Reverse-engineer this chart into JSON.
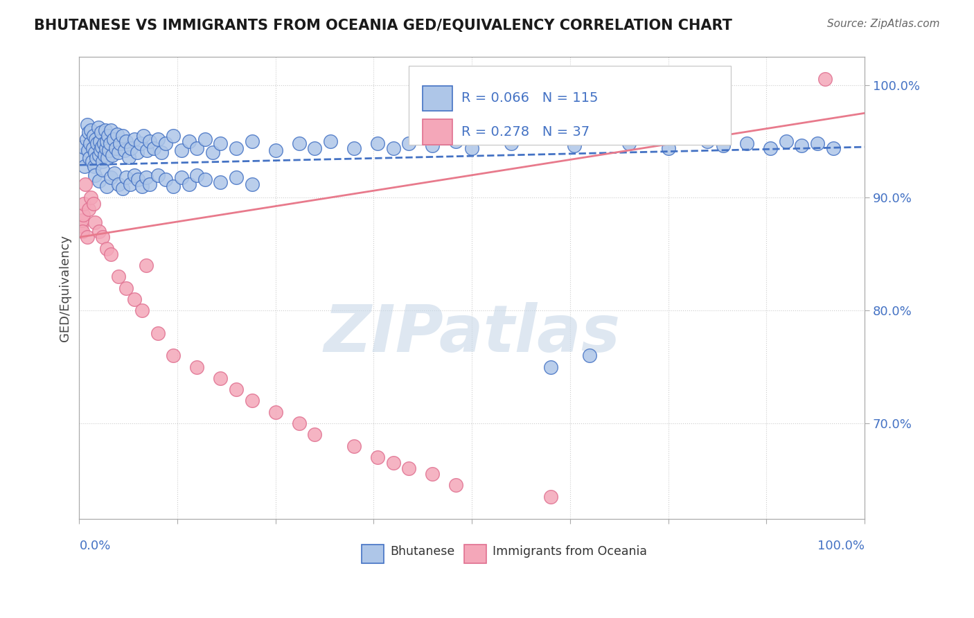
{
  "title": "BHUTANESE VS IMMIGRANTS FROM OCEANIA GED/EQUIVALENCY CORRELATION CHART",
  "source_text": "Source: ZipAtlas.com",
  "ylabel": "GED/Equivalency",
  "watermark": "ZIPatlas",
  "watermark_color": "#c8d8e8",
  "background_color": "#ffffff",
  "grid_color": "#cccccc",
  "blue_scatter_color": "#aec6e8",
  "pink_scatter_color": "#f4a7b9",
  "blue_line_color": "#4472c4",
  "pink_line_color": "#e87a8c",
  "blue_scatter_x": [
    0.3,
    0.5,
    0.7,
    0.9,
    1.0,
    1.1,
    1.2,
    1.3,
    1.4,
    1.5,
    1.6,
    1.7,
    1.8,
    1.9,
    2.0,
    2.1,
    2.2,
    2.3,
    2.4,
    2.5,
    2.6,
    2.7,
    2.8,
    2.9,
    3.0,
    3.1,
    3.2,
    3.3,
    3.4,
    3.5,
    3.6,
    3.7,
    3.8,
    3.9,
    4.0,
    4.2,
    4.4,
    4.6,
    4.8,
    5.0,
    5.2,
    5.5,
    5.8,
    6.0,
    6.3,
    6.6,
    7.0,
    7.4,
    7.8,
    8.2,
    8.6,
    9.0,
    9.5,
    10.0,
    10.5,
    11.0,
    12.0,
    13.0,
    14.0,
    15.0,
    16.0,
    17.0,
    18.0,
    20.0,
    22.0,
    25.0,
    28.0,
    30.0,
    32.0,
    35.0,
    38.0,
    40.0,
    42.0,
    45.0,
    48.0,
    50.0,
    55.0,
    60.0,
    63.0,
    65.0,
    70.0,
    75.0,
    80.0,
    82.0,
    85.0,
    88.0,
    90.0,
    92.0,
    94.0,
    96.0,
    2.0,
    2.5,
    3.0,
    3.5,
    4.0,
    4.5,
    5.0,
    5.5,
    6.0,
    6.5,
    7.0,
    7.5,
    8.0,
    8.5,
    9.0,
    10.0,
    11.0,
    12.0,
    13.0,
    14.0,
    15.0,
    16.0,
    18.0,
    20.0,
    22.0
  ],
  "blue_scatter_y": [
    0.938,
    0.945,
    0.928,
    0.952,
    0.965,
    0.942,
    0.958,
    0.935,
    0.948,
    0.96,
    0.932,
    0.944,
    0.955,
    0.928,
    0.94,
    0.952,
    0.935,
    0.948,
    0.962,
    0.938,
    0.95,
    0.942,
    0.958,
    0.945,
    0.932,
    0.948,
    0.938,
    0.96,
    0.944,
    0.95,
    0.935,
    0.955,
    0.942,
    0.948,
    0.96,
    0.938,
    0.952,
    0.944,
    0.956,
    0.94,
    0.948,
    0.955,
    0.942,
    0.95,
    0.936,
    0.944,
    0.952,
    0.94,
    0.948,
    0.955,
    0.942,
    0.95,
    0.944,
    0.952,
    0.94,
    0.948,
    0.955,
    0.942,
    0.95,
    0.944,
    0.952,
    0.94,
    0.948,
    0.944,
    0.95,
    0.942,
    0.948,
    0.944,
    0.95,
    0.944,
    0.948,
    0.944,
    0.948,
    0.946,
    0.95,
    0.944,
    0.948,
    0.75,
    0.946,
    0.76,
    0.948,
    0.944,
    0.95,
    0.946,
    0.948,
    0.944,
    0.95,
    0.946,
    0.948,
    0.944,
    0.92,
    0.915,
    0.925,
    0.91,
    0.918,
    0.922,
    0.912,
    0.908,
    0.918,
    0.912,
    0.92,
    0.916,
    0.91,
    0.918,
    0.912,
    0.92,
    0.916,
    0.91,
    0.918,
    0.912,
    0.92,
    0.916,
    0.914,
    0.918,
    0.912
  ],
  "pink_scatter_x": [
    0.2,
    0.3,
    0.4,
    0.5,
    0.6,
    0.8,
    1.0,
    1.2,
    1.5,
    1.8,
    2.0,
    2.5,
    3.0,
    3.5,
    4.0,
    5.0,
    6.0,
    7.0,
    8.0,
    8.5,
    10.0,
    12.0,
    15.0,
    18.0,
    20.0,
    22.0,
    25.0,
    28.0,
    30.0,
    35.0,
    38.0,
    40.0,
    42.0,
    45.0,
    48.0,
    60.0,
    95.0
  ],
  "pink_scatter_y": [
    0.875,
    0.88,
    0.87,
    0.885,
    0.895,
    0.912,
    0.865,
    0.89,
    0.9,
    0.895,
    0.878,
    0.87,
    0.865,
    0.855,
    0.85,
    0.83,
    0.82,
    0.81,
    0.8,
    0.84,
    0.78,
    0.76,
    0.75,
    0.74,
    0.73,
    0.72,
    0.71,
    0.7,
    0.69,
    0.68,
    0.67,
    0.665,
    0.66,
    0.655,
    0.645,
    0.635,
    1.005
  ],
  "blue_line_x": [
    0,
    100
  ],
  "blue_line_y": [
    0.929,
    0.945
  ],
  "pink_line_x": [
    0,
    100
  ],
  "pink_line_y": [
    0.865,
    0.975
  ],
  "xmin": 0,
  "xmax": 100,
  "ymin": 0.615,
  "ymax": 1.025,
  "right_yticks": [
    0.7,
    0.8,
    0.9,
    1.0
  ],
  "right_ytick_strings": [
    "70.0%",
    "80.0%",
    "90.0%",
    "100.0%"
  ],
  "legend_blue_R": "0.066",
  "legend_blue_N": "115",
  "legend_pink_R": "0.278",
  "legend_pink_N": "37"
}
